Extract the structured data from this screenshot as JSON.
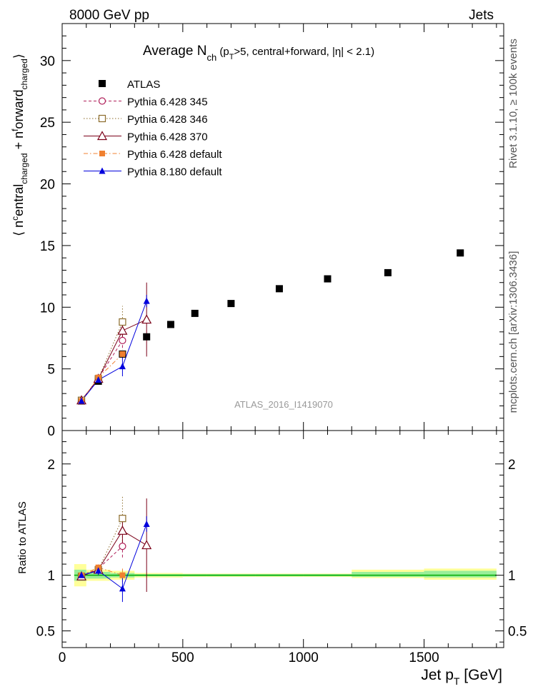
{
  "header": {
    "left": "8000 GeV pp",
    "right": "Jets"
  },
  "side_labels": {
    "rivet": "Rivet 3.1.10, ≥ 100k events",
    "mcplots": "mcplots.cern.ch [arXiv:1306.3436]"
  },
  "colors": {
    "atlas": "#000000",
    "p345": "#b0205a",
    "p346": "#8b6b2a",
    "p370": "#7b0018",
    "p6def": "#f08030",
    "p8": "#0000dd",
    "band_yellow": "#ffff99",
    "band_green": "#99ee99",
    "ref_line": "#00aa00"
  },
  "chart_data": [
    {
      "type": "scatter",
      "title_parts": {
        "main": "Average N",
        "sub": "ch",
        "rest": " (p",
        "sub2": "T",
        "rest2": ">5, central+forward, |η| < 2.1)"
      },
      "watermark": "ATLAS_2016_I1419070",
      "ylabel_parts": {
        "open": "⟨ n",
        "sup1": "c",
        "mid1": "entral",
        "sub1": "charged",
        "plus": " + n",
        "sup2": "f",
        "mid2": "orward",
        "sub2": "charged",
        "close": "⟩"
      },
      "xlim": [
        0,
        1830
      ],
      "ylim": [
        0,
        33
      ],
      "y_ticks": [
        0,
        5,
        10,
        15,
        20,
        25,
        30
      ],
      "y_tick_labels": [
        "0",
        "5",
        "10",
        "15",
        "20",
        "25",
        "30"
      ],
      "legend": {
        "position": "top-left",
        "entries": [
          {
            "key": "atlas",
            "label": "ATLAS"
          },
          {
            "key": "p345",
            "label": "Pythia 6.428 345"
          },
          {
            "key": "p346",
            "label": "Pythia 6.428 346"
          },
          {
            "key": "p370",
            "label": "Pythia 6.428 370"
          },
          {
            "key": "p6def",
            "label": "Pythia 6.428 default"
          },
          {
            "key": "p8",
            "label": "Pythia 8.180 default"
          }
        ]
      },
      "series": [
        {
          "key": "atlas",
          "name": "ATLAS",
          "marker": "filled-square",
          "line": "none",
          "x": [
            80,
            150,
            250,
            350,
            450,
            550,
            700,
            900,
            1100,
            1350,
            1650
          ],
          "y": [
            2.4,
            4.0,
            6.2,
            7.6,
            8.6,
            9.5,
            10.3,
            11.5,
            12.3,
            12.8,
            14.4
          ]
        },
        {
          "key": "p345",
          "name": "Pythia 6.428 345",
          "marker": "open-circle",
          "line": "dashed",
          "x": [
            80,
            150,
            250
          ],
          "y": [
            2.45,
            4.25,
            7.3
          ],
          "err": [
            0.1,
            0.2,
            0.6
          ]
        },
        {
          "key": "p346",
          "name": "Pythia 6.428 346",
          "marker": "open-square",
          "line": "dotted",
          "x": [
            80,
            150,
            250
          ],
          "y": [
            2.45,
            4.2,
            8.8
          ],
          "err": [
            0.1,
            0.2,
            1.3
          ]
        },
        {
          "key": "p370",
          "name": "Pythia 6.428 370",
          "marker": "open-triangle",
          "line": "solid",
          "x": [
            80,
            150,
            250,
            350
          ],
          "y": [
            2.45,
            4.2,
            8.1,
            9.0
          ],
          "err": [
            0.1,
            0.2,
            0.9,
            3.0
          ]
        },
        {
          "key": "p6def",
          "name": "Pythia 6.428 default",
          "marker": "filled-square-small",
          "line": "dashdot",
          "x": [
            80,
            150,
            250
          ],
          "y": [
            2.4,
            4.3,
            6.2
          ],
          "err": [
            0.1,
            0.2,
            0.4
          ]
        },
        {
          "key": "p8",
          "name": "Pythia 8.180 default",
          "marker": "filled-triangle",
          "line": "solid",
          "x": [
            80,
            150,
            250,
            350
          ],
          "y": [
            2.4,
            4.1,
            5.2,
            10.5
          ],
          "err": [
            0.1,
            0.2,
            0.8,
            0.5
          ]
        }
      ]
    },
    {
      "type": "scatter",
      "ylabel": "Ratio to ATLAS",
      "xlabel_parts": {
        "main": "Jet p",
        "sub": "T",
        "rest": " [GeV]"
      },
      "xlim": [
        0,
        1830
      ],
      "ylim": [
        0.35,
        2.3
      ],
      "x_ticks": [
        0,
        500,
        1000,
        1500
      ],
      "x_tick_labels": [
        "0",
        "500",
        "1000",
        "1500"
      ],
      "y_ticks": [
        0.5,
        1,
        2
      ],
      "y_tick_labels": [
        "0.5",
        "1",
        "2"
      ],
      "bands": [
        {
          "x0": 50,
          "x1": 100,
          "green": [
            0.95,
            1.05
          ],
          "yellow": [
            0.9,
            1.1
          ]
        },
        {
          "x0": 100,
          "x1": 200,
          "green": [
            0.97,
            1.03
          ],
          "yellow": [
            0.95,
            1.05
          ]
        },
        {
          "x0": 200,
          "x1": 300,
          "green": [
            0.98,
            1.02
          ],
          "yellow": [
            0.96,
            1.04
          ]
        },
        {
          "x0": 300,
          "x1": 400,
          "green": [
            0.99,
            1.01
          ],
          "yellow": [
            0.98,
            1.02
          ]
        },
        {
          "x0": 400,
          "x1": 500,
          "green": [
            0.99,
            1.01
          ],
          "yellow": [
            0.98,
            1.02
          ]
        },
        {
          "x0": 500,
          "x1": 600,
          "green": [
            0.99,
            1.01
          ],
          "yellow": [
            0.985,
            1.015
          ]
        },
        {
          "x0": 600,
          "x1": 800,
          "green": [
            0.99,
            1.01
          ],
          "yellow": [
            0.985,
            1.015
          ]
        },
        {
          "x0": 800,
          "x1": 1000,
          "green": [
            0.99,
            1.01
          ],
          "yellow": [
            0.985,
            1.015
          ]
        },
        {
          "x0": 1000,
          "x1": 1200,
          "green": [
            0.99,
            1.01
          ],
          "yellow": [
            0.985,
            1.015
          ]
        },
        {
          "x0": 1200,
          "x1": 1500,
          "green": [
            0.985,
            1.03
          ],
          "yellow": [
            0.975,
            1.05
          ]
        },
        {
          "x0": 1500,
          "x1": 1800,
          "green": [
            0.98,
            1.04
          ],
          "yellow": [
            0.96,
            1.06
          ]
        }
      ],
      "series": [
        {
          "key": "p345",
          "x": [
            80,
            150,
            250
          ],
          "y": [
            0.99,
            1.06,
            1.26
          ],
          "err": [
            0.03,
            0.04,
            0.1
          ]
        },
        {
          "key": "p346",
          "x": [
            80,
            150,
            250
          ],
          "y": [
            0.99,
            1.05,
            1.51
          ],
          "err": [
            0.03,
            0.04,
            0.2
          ]
        },
        {
          "key": "p370",
          "x": [
            80,
            150,
            250,
            350
          ],
          "y": [
            0.99,
            1.05,
            1.4,
            1.27
          ],
          "err": [
            0.03,
            0.04,
            0.13,
            0.42
          ]
        },
        {
          "key": "p6def",
          "x": [
            80,
            150,
            250
          ],
          "y": [
            1.0,
            1.07,
            1.0
          ],
          "err": [
            0.03,
            0.04,
            0.06
          ]
        },
        {
          "key": "p8",
          "x": [
            80,
            150,
            250,
            350
          ],
          "y": [
            1.0,
            1.04,
            0.88,
            1.46
          ],
          "err": [
            0.03,
            0.04,
            0.12,
            0.07
          ]
        }
      ]
    }
  ]
}
